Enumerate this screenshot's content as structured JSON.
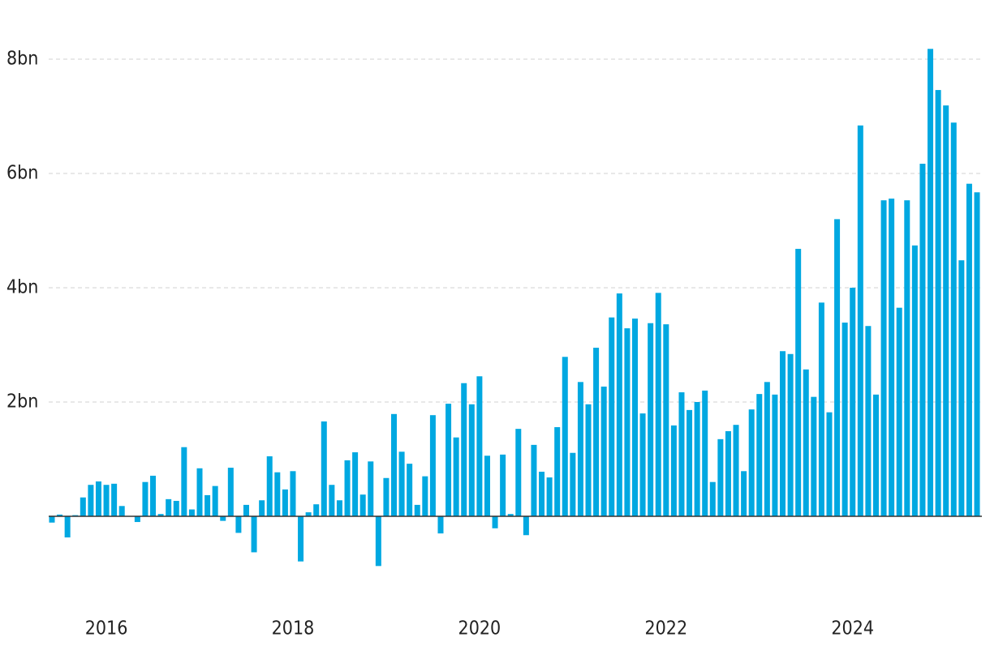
{
  "chart_data": {
    "type": "bar",
    "color": "#00a8e1",
    "categories": [
      null,
      null,
      null,
      null,
      null,
      null,
      null,
      "2016",
      null,
      null,
      null,
      null,
      null,
      null,
      null,
      null,
      null,
      null,
      null,
      null,
      null,
      null,
      null,
      null,
      null,
      null,
      null,
      null,
      null,
      null,
      null,
      "2018",
      null,
      null,
      null,
      null,
      null,
      null,
      null,
      null,
      null,
      null,
      null,
      null,
      null,
      null,
      null,
      null,
      null,
      null,
      null,
      null,
      null,
      null,
      null,
      "2020",
      null,
      null,
      null,
      null,
      null,
      null,
      null,
      null,
      null,
      null,
      null,
      null,
      null,
      null,
      null,
      null,
      null,
      null,
      null,
      null,
      null,
      null,
      null,
      "2022",
      null,
      null,
      null,
      null,
      null,
      null,
      null,
      null,
      null,
      null,
      null,
      null,
      null,
      null,
      null,
      null,
      null,
      null,
      null,
      null,
      null,
      null,
      null,
      "2024",
      null,
      null,
      null,
      null,
      null,
      null,
      null,
      null,
      null,
      null,
      null,
      null,
      null,
      null,
      null,
      null
    ],
    "values": [
      -0.11,
      0.03,
      -0.37,
      0.02,
      0.33,
      0.55,
      0.61,
      0.55,
      0.57,
      0.18,
      0,
      -0.1,
      0.6,
      0.71,
      0.04,
      0.3,
      0.27,
      1.21,
      0.12,
      0.84,
      0.37,
      0.53,
      -0.08,
      0.85,
      -0.29,
      0.2,
      -0.63,
      0.28,
      1.05,
      0.77,
      0.47,
      0.79,
      -0.79,
      0.07,
      0.21,
      1.66,
      0.55,
      0.28,
      0.98,
      1.12,
      0.38,
      0.96,
      -0.87,
      0.67,
      1.79,
      1.13,
      0.92,
      0.2,
      0.7,
      1.77,
      -0.3,
      1.97,
      1.38,
      2.33,
      1.96,
      2.45,
      1.06,
      -0.21,
      1.08,
      0.04,
      1.53,
      -0.33,
      1.25,
      0.78,
      0.68,
      1.56,
      2.79,
      1.11,
      2.35,
      1.96,
      2.95,
      2.27,
      3.48,
      3.9,
      3.29,
      3.46,
      1.8,
      3.38,
      3.91,
      3.36,
      1.59,
      2.17,
      1.86,
      2.0,
      2.2,
      0.6,
      1.35,
      1.49,
      1.6,
      0.79,
      1.87,
      2.14,
      2.35,
      2.13,
      2.89,
      2.84,
      4.68,
      2.57,
      2.09,
      3.74,
      1.82,
      5.2,
      3.39,
      4.0,
      6.84,
      3.33,
      2.13,
      5.53,
      5.56,
      3.65,
      5.53,
      4.74,
      6.17,
      8.18,
      7.46,
      7.19,
      6.89,
      4.48,
      5.82,
      5.67
    ],
    "ylim": [
      -1.2,
      8.8
    ],
    "yticks": [
      {
        "value": 2,
        "label": "2bn"
      },
      {
        "value": 4,
        "label": "4bn"
      },
      {
        "value": 6,
        "label": "6bn"
      },
      {
        "value": 8,
        "label": "8bn"
      }
    ],
    "grid": true
  }
}
